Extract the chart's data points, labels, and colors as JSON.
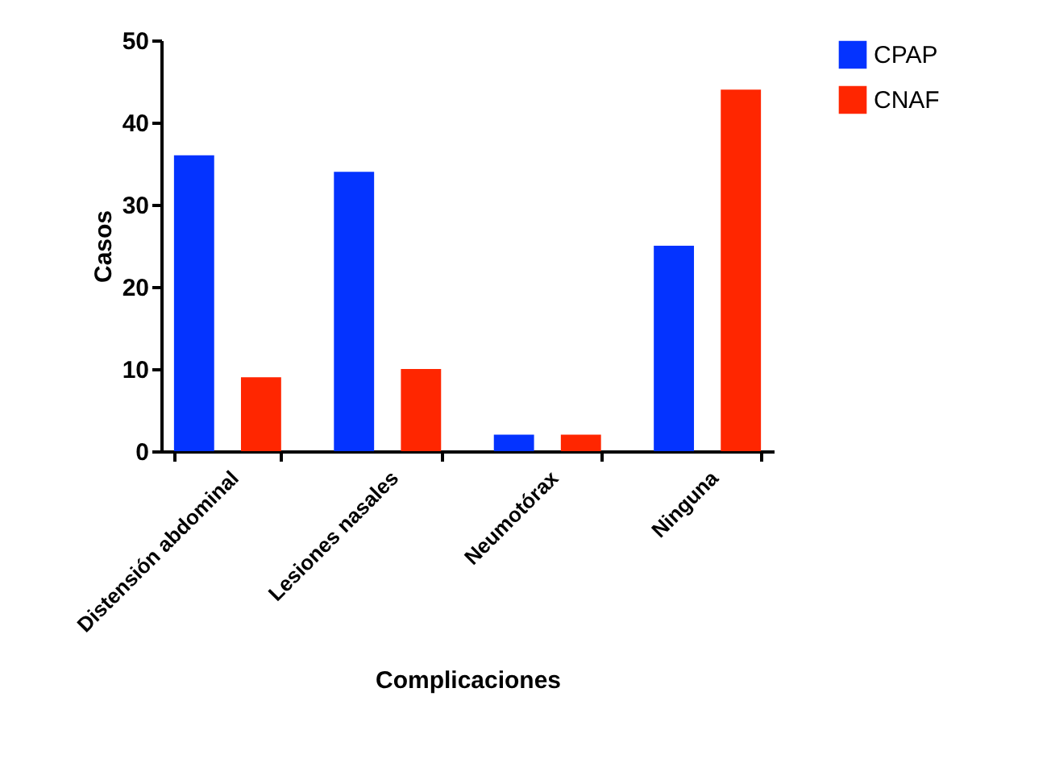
{
  "chart_data": {
    "type": "bar",
    "xlabel": "Complicaciones",
    "ylabel": "Casos",
    "categories": [
      "Distensión abdominal",
      "Lesiones nasales",
      "Neumotórax",
      "Ninguna"
    ],
    "series": [
      {
        "name": "CPAP",
        "color": "#0433ff",
        "values": [
          36,
          34,
          2,
          25
        ]
      },
      {
        "name": "CNAF",
        "color": "#ff2600",
        "values": [
          9,
          10,
          2,
          44
        ]
      }
    ],
    "ylim": [
      0,
      50
    ],
    "yticks": [
      0,
      10,
      20,
      30,
      40,
      50
    ],
    "grid": false,
    "legend": "top right"
  }
}
